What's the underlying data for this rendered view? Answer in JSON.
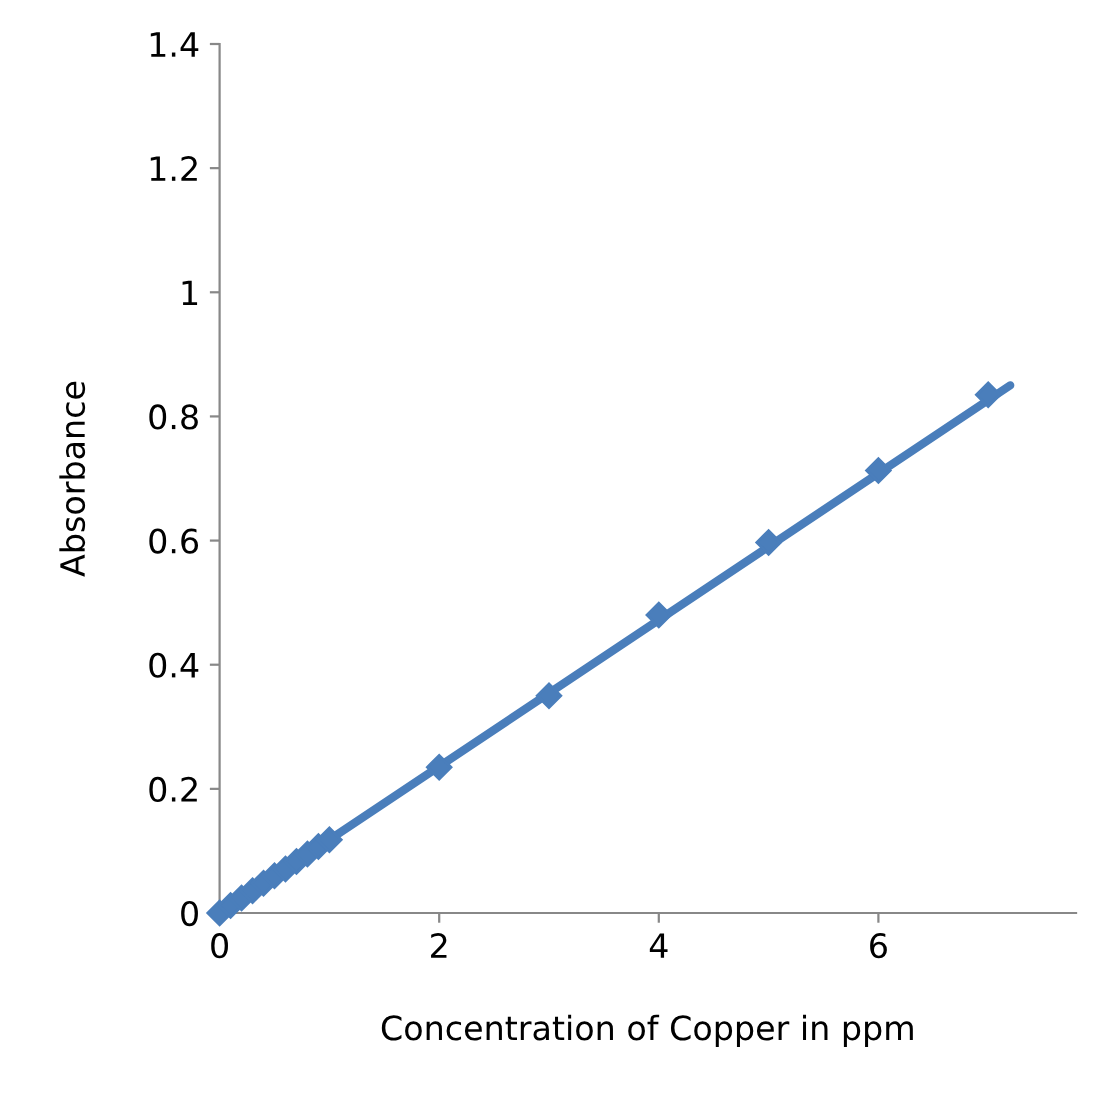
{
  "chart_data": {
    "type": "scatter",
    "xlabel": "Concentration of Copper in ppm",
    "ylabel": "Absorbance",
    "xlim": [
      0,
      7.8
    ],
    "xticks": [
      0,
      2,
      4,
      6
    ],
    "ylim": [
      0,
      1.4
    ],
    "yticks": [
      0,
      0.2,
      0.4,
      0.6,
      0.8,
      1,
      1.2,
      1.4
    ],
    "grid": false,
    "legend": false,
    "marker": "diamond",
    "series": [
      {
        "color": "#4a7ebb",
        "x": [
          0,
          0.1,
          0.2,
          0.3,
          0.4,
          0.5,
          0.6,
          0.7,
          0.8,
          0.9,
          1.0,
          2,
          3,
          4,
          5,
          6,
          7
        ],
        "values": [
          0,
          0.012,
          0.024,
          0.036,
          0.048,
          0.06,
          0.071,
          0.083,
          0.095,
          0.107,
          0.118,
          0.235,
          0.35,
          0.48,
          0.597,
          0.713,
          0.835
        ]
      },
      {
        "type": "line",
        "color": "#4a7ebb",
        "marker": "none",
        "line_style": "solid",
        "x": [
          0,
          7.2
        ],
        "values": [
          0,
          0.85
        ]
      }
    ]
  }
}
